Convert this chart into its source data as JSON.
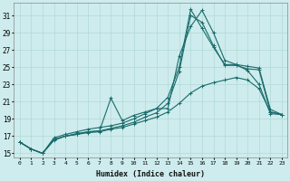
{
  "xlabel": "Humidex (Indice chaleur)",
  "background_color": "#ceeced",
  "grid_color": "#b0d8d8",
  "line_color": "#1a6b6b",
  "xlim": [
    -0.5,
    23.5
  ],
  "ylim": [
    14.5,
    32.5
  ],
  "xticks": [
    0,
    1,
    2,
    3,
    4,
    5,
    6,
    7,
    8,
    9,
    10,
    11,
    12,
    13,
    14,
    15,
    16,
    17,
    18,
    19,
    20,
    21,
    22,
    23
  ],
  "yticks": [
    15,
    17,
    19,
    21,
    23,
    25,
    27,
    29,
    31
  ],
  "lines": [
    [
      16.3,
      15.5,
      15.0,
      16.8,
      17.2,
      17.5,
      17.8,
      18.0,
      18.2,
      18.5,
      19.0,
      19.6,
      20.2,
      21.5,
      25.0,
      31.7,
      29.5,
      27.3,
      25.3,
      25.3,
      24.6,
      23.0,
      19.6,
      19.5
    ],
    [
      16.3,
      15.5,
      15.0,
      16.6,
      17.0,
      17.3,
      17.5,
      17.6,
      21.4,
      18.8,
      19.4,
      19.8,
      20.2,
      20.2,
      26.3,
      29.7,
      31.6,
      29.0,
      25.8,
      25.3,
      25.1,
      24.9,
      20.1,
      19.5
    ],
    [
      16.3,
      15.5,
      15.0,
      16.6,
      17.0,
      17.2,
      17.5,
      17.6,
      17.9,
      18.2,
      18.6,
      19.2,
      19.7,
      20.8,
      24.5,
      31.0,
      30.2,
      27.5,
      25.2,
      25.2,
      24.8,
      24.7,
      19.8,
      19.5
    ],
    [
      16.3,
      15.5,
      15.0,
      16.5,
      17.0,
      17.2,
      17.4,
      17.5,
      17.8,
      18.0,
      18.4,
      18.8,
      19.2,
      19.8,
      20.8,
      22.0,
      22.8,
      23.2,
      23.5,
      23.8,
      23.5,
      22.5,
      19.8,
      19.5
    ]
  ]
}
